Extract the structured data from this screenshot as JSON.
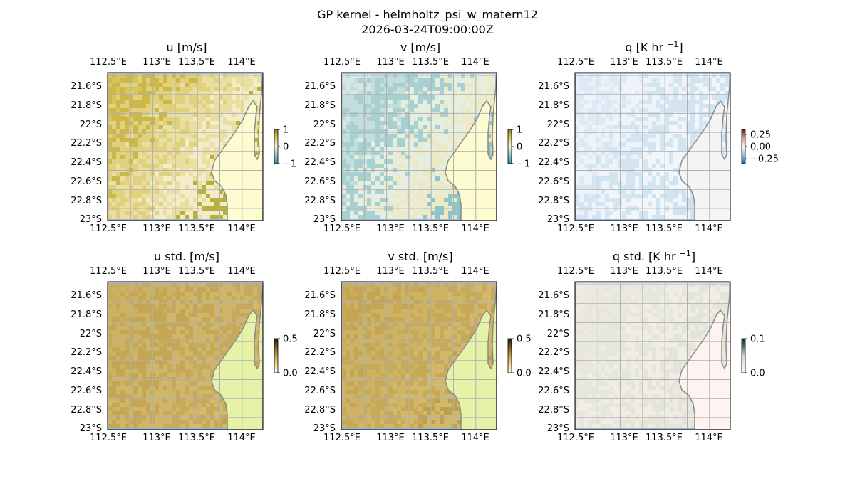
{
  "figure": {
    "title": "GP kernel - helmholtz_psi_w_matern12",
    "timestamp": "2026-03-24T09:00:00Z"
  },
  "axes_labels": {
    "lon_ticks": [
      "112.5°E",
      "113°E",
      "113.5°E",
      "114°E"
    ],
    "lat_ticks": [
      "21.6°S",
      "21.8°S",
      "22°S",
      "22.2°S",
      "22.4°S",
      "22.6°S",
      "22.8°S",
      "23°S"
    ]
  },
  "colors": {
    "ocean_blue": "#9bb4dc",
    "grid": "#b0b0b0",
    "coast": "#8a8a8a"
  },
  "panels": [
    {
      "id": "u",
      "title_main": "u [m/s]",
      "title_sup": "",
      "colorbar_ticks": [
        "1",
        "0",
        "−1"
      ],
      "colorbar_values": [
        1,
        0,
        -1
      ],
      "colorbar_colors": [
        "#7a8a1a",
        "#d9ca6b",
        "#f6f3dd",
        "#8ec7cc",
        "#3e8fa6"
      ],
      "field_colors": [
        "#d8c35c",
        "#cbb848",
        "#e1d07e",
        "#eadfa2",
        "#f2ecc8",
        "#b8b03a",
        "#8c9a26"
      ],
      "land_color": "#fdfbd0"
    },
    {
      "id": "v",
      "title_main": "v [m/s]",
      "title_sup": "",
      "colorbar_ticks": [
        "1",
        "0",
        "−1"
      ],
      "colorbar_values": [
        1,
        0,
        -1
      ],
      "colorbar_colors": [
        "#7a8a1a",
        "#d9ca6b",
        "#f6f3dd",
        "#8ec7cc",
        "#3e8fa6"
      ],
      "field_colors": [
        "#d7e7e4",
        "#c3dedd",
        "#a9d0d1",
        "#e6eee0",
        "#eee9c5",
        "#8fc4c8",
        "#d6c86c"
      ],
      "land_color": "#fdfbd0"
    },
    {
      "id": "q",
      "title_main": "q [K hr ",
      "title_sup": "−1",
      "title_end": "]",
      "colorbar_ticks": [
        "0.25",
        "0.00",
        "−0.25"
      ],
      "colorbar_values": [
        0.25,
        0.0,
        -0.25
      ],
      "colorbar_colors": [
        "#5a1a1a",
        "#d99a8a",
        "#f6f6f6",
        "#8ec0dc",
        "#1f5f9a"
      ],
      "field_colors": [
        "#e7f0f7",
        "#dde9f4",
        "#edf3f8",
        "#d4e5f2",
        "#f3f6f8",
        "#cfe2f0",
        "#b9d6ec"
      ],
      "land_color": "#f4f4f4"
    },
    {
      "id": "u_std",
      "title_main": "u std. [m/s]",
      "title_sup": "",
      "colorbar_ticks": [
        "0.5",
        "0.0"
      ],
      "colorbar_values": [
        0.5,
        0.0
      ],
      "colorbar_colors": [
        "#2b1a12",
        "#7a5a2a",
        "#c8a04a",
        "#e8d898",
        "#fbfae6"
      ],
      "field_colors": [
        "#c9ad5c",
        "#ccb263",
        "#c4a654",
        "#d0b66a",
        "#c6aa59",
        "#d3ba70",
        "#bfa250"
      ],
      "land_color": "#e6f2a8"
    },
    {
      "id": "v_std",
      "title_main": "v std. [m/s]",
      "title_sup": "",
      "colorbar_ticks": [
        "0.5",
        "0.0"
      ],
      "colorbar_values": [
        0.5,
        0.0
      ],
      "colorbar_colors": [
        "#2b1a12",
        "#7a5a2a",
        "#c8a04a",
        "#e8d898",
        "#fbfae6"
      ],
      "field_colors": [
        "#c9ad5c",
        "#c3a552",
        "#ceb366",
        "#c7aa58",
        "#d2b86c",
        "#be9f4d",
        "#cbb060"
      ],
      "land_color": "#e6f2a8"
    },
    {
      "id": "q_std",
      "title_main": "q std. [K hr ",
      "title_sup": "−1",
      "title_end": "]",
      "colorbar_ticks": [
        "0.1",
        "0.0"
      ],
      "colorbar_values": [
        0.1,
        0.0
      ],
      "colorbar_colors": [
        "#0f2a20",
        "#4a7a5a",
        "#c9d9c4",
        "#efe6e2",
        "#fdf3f1"
      ],
      "field_colors": [
        "#efebe4",
        "#ebe8df",
        "#e6e7dc",
        "#f1ede6",
        "#e2e5d8",
        "#ede9e2",
        "#e8e9de"
      ],
      "land_color": "#fdf3f1"
    }
  ]
}
